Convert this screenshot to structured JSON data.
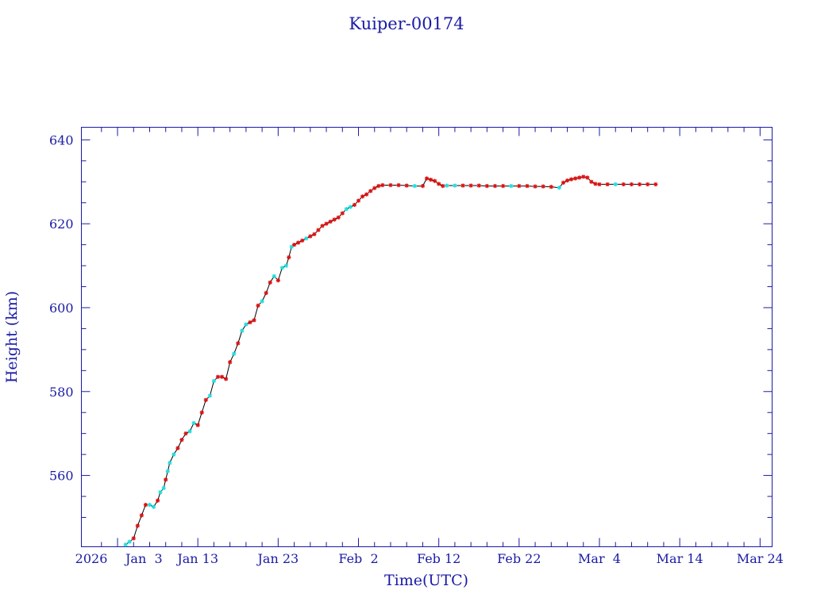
{
  "chart_data": {
    "type": "line",
    "title": "Kuiper-00174",
    "xlabel": "Time(UTC)",
    "ylabel": "Height (km)",
    "x_tick_labels": [
      {
        "date": "2026-01-03",
        "label": "2026"
      },
      {
        "date": "2026-01-13",
        "label": "Jan 13"
      },
      {
        "date": "2026-01-23",
        "label": "Jan 23"
      },
      {
        "date": "2026-02-02",
        "label": "Feb  2"
      },
      {
        "date": "2026-02-12",
        "label": "Feb 12"
      },
      {
        "date": "2026-02-22",
        "label": "Feb 22"
      },
      {
        "date": "2026-03-04",
        "label": "Mar  4"
      },
      {
        "date": "2026-03-14",
        "label": "Mar 14"
      },
      {
        "date": "2026-03-24",
        "label": "Mar 24"
      }
    ],
    "x_first_tick_date_label": "Jan  3",
    "y_ticks": [
      560,
      580,
      600,
      620,
      640
    ],
    "ylim": [
      543,
      643
    ],
    "xlim": [
      "2025-12-29T12:00:00Z",
      "2026-03-25T12:00:00Z"
    ],
    "grid": false,
    "colors": {
      "frame": "#1a1aa6",
      "text": "#1a1aa6",
      "line": "#000000",
      "marker_red": "#dd1111",
      "marker_cyan": "#22dddd"
    },
    "series": [
      {
        "values": [
          {
            "x": "2026-01-04T00:00:00Z",
            "y": 543.5,
            "m": "c"
          },
          {
            "x": "2026-01-04T12:00:00Z",
            "y": 544.2,
            "m": "c"
          },
          {
            "x": "2026-01-05T00:00:00Z",
            "y": 545.0,
            "m": "r"
          },
          {
            "x": "2026-01-05T12:00:00Z",
            "y": 548.0,
            "m": "r"
          },
          {
            "x": "2026-01-06T00:00:00Z",
            "y": 550.5,
            "m": "r"
          },
          {
            "x": "2026-01-06T12:00:00Z",
            "y": 553.0,
            "m": "r"
          },
          {
            "x": "2026-01-07T00:00:00Z",
            "y": 553.0,
            "m": "c"
          },
          {
            "x": "2026-01-07T12:00:00Z",
            "y": 552.5,
            "m": "c"
          },
          {
            "x": "2026-01-08T00:00:00Z",
            "y": 554.0,
            "m": "r"
          },
          {
            "x": "2026-01-08T08:00:00Z",
            "y": 556.0,
            "m": "c"
          },
          {
            "x": "2026-01-08T18:00:00Z",
            "y": 557.0,
            "m": "c"
          },
          {
            "x": "2026-01-09T00:00:00Z",
            "y": 559.0,
            "m": "r"
          },
          {
            "x": "2026-01-09T06:00:00Z",
            "y": 561.0,
            "m": "c"
          },
          {
            "x": "2026-01-09T12:00:00Z",
            "y": 563.0,
            "m": "c"
          },
          {
            "x": "2026-01-10T00:00:00Z",
            "y": 565.0,
            "m": "c"
          },
          {
            "x": "2026-01-10T12:00:00Z",
            "y": 566.5,
            "m": "r"
          },
          {
            "x": "2026-01-11T00:00:00Z",
            "y": 568.5,
            "m": "r"
          },
          {
            "x": "2026-01-11T12:00:00Z",
            "y": 570.0,
            "m": "r"
          },
          {
            "x": "2026-01-12T00:00:00Z",
            "y": 570.5,
            "m": "c"
          },
          {
            "x": "2026-01-12T12:00:00Z",
            "y": 572.5,
            "m": "c"
          },
          {
            "x": "2026-01-13T00:00:00Z",
            "y": 572.0,
            "m": "r"
          },
          {
            "x": "2026-01-13T12:00:00Z",
            "y": 575.0,
            "m": "r"
          },
          {
            "x": "2026-01-14T00:00:00Z",
            "y": 578.0,
            "m": "r"
          },
          {
            "x": "2026-01-14T12:00:00Z",
            "y": 579.0,
            "m": "c"
          },
          {
            "x": "2026-01-15T00:00:00Z",
            "y": 582.5,
            "m": "c"
          },
          {
            "x": "2026-01-15T12:00:00Z",
            "y": 583.5,
            "m": "r"
          },
          {
            "x": "2026-01-16T00:00:00Z",
            "y": 583.5,
            "m": "r"
          },
          {
            "x": "2026-01-16T12:00:00Z",
            "y": 583.0,
            "m": "r"
          },
          {
            "x": "2026-01-17T00:00:00Z",
            "y": 587.0,
            "m": "r"
          },
          {
            "x": "2026-01-17T12:00:00Z",
            "y": 589.0,
            "m": "c"
          },
          {
            "x": "2026-01-18T00:00:00Z",
            "y": 591.5,
            "m": "r"
          },
          {
            "x": "2026-01-18T12:00:00Z",
            "y": 594.5,
            "m": "c"
          },
          {
            "x": "2026-01-19T00:00:00Z",
            "y": 596.0,
            "m": "c"
          },
          {
            "x": "2026-01-19T12:00:00Z",
            "y": 596.5,
            "m": "r"
          },
          {
            "x": "2026-01-20T00:00:00Z",
            "y": 597.0,
            "m": "r"
          },
          {
            "x": "2026-01-20T12:00:00Z",
            "y": 600.5,
            "m": "r"
          },
          {
            "x": "2026-01-21T00:00:00Z",
            "y": 601.5,
            "m": "c"
          },
          {
            "x": "2026-01-21T12:00:00Z",
            "y": 603.5,
            "m": "r"
          },
          {
            "x": "2026-01-22T00:00:00Z",
            "y": 606.0,
            "m": "r"
          },
          {
            "x": "2026-01-22T12:00:00Z",
            "y": 607.5,
            "m": "c"
          },
          {
            "x": "2026-01-23T00:00:00Z",
            "y": 606.5,
            "m": "r"
          },
          {
            "x": "2026-01-23T12:00:00Z",
            "y": 609.5,
            "m": "c"
          },
          {
            "x": "2026-01-24T00:00:00Z",
            "y": 610.0,
            "m": "c"
          },
          {
            "x": "2026-01-24T08:00:00Z",
            "y": 612.0,
            "m": "r"
          },
          {
            "x": "2026-01-24T16:00:00Z",
            "y": 614.5,
            "m": "c"
          },
          {
            "x": "2026-01-25T00:00:00Z",
            "y": 615.0,
            "m": "r"
          },
          {
            "x": "2026-01-25T12:00:00Z",
            "y": 615.5,
            "m": "r"
          },
          {
            "x": "2026-01-26T00:00:00Z",
            "y": 616.0,
            "m": "r"
          },
          {
            "x": "2026-01-26T12:00:00Z",
            "y": 616.5,
            "m": "c"
          },
          {
            "x": "2026-01-27T00:00:00Z",
            "y": 617.0,
            "m": "r"
          },
          {
            "x": "2026-01-27T12:00:00Z",
            "y": 617.5,
            "m": "r"
          },
          {
            "x": "2026-01-28T00:00:00Z",
            "y": 618.5,
            "m": "r"
          },
          {
            "x": "2026-01-28T12:00:00Z",
            "y": 619.5,
            "m": "r"
          },
          {
            "x": "2026-01-29T00:00:00Z",
            "y": 620.0,
            "m": "r"
          },
          {
            "x": "2026-01-29T12:00:00Z",
            "y": 620.5,
            "m": "r"
          },
          {
            "x": "2026-01-30T00:00:00Z",
            "y": 621.0,
            "m": "r"
          },
          {
            "x": "2026-01-30T12:00:00Z",
            "y": 621.5,
            "m": "r"
          },
          {
            "x": "2026-01-31T00:00:00Z",
            "y": 622.5,
            "m": "r"
          },
          {
            "x": "2026-01-31T12:00:00Z",
            "y": 623.5,
            "m": "c"
          },
          {
            "x": "2026-02-01T00:00:00Z",
            "y": 624.0,
            "m": "c"
          },
          {
            "x": "2026-02-01T12:00:00Z",
            "y": 624.5,
            "m": "r"
          },
          {
            "x": "2026-02-02T00:00:00Z",
            "y": 625.5,
            "m": "r"
          },
          {
            "x": "2026-02-02T12:00:00Z",
            "y": 626.5,
            "m": "r"
          },
          {
            "x": "2026-02-03T00:00:00Z",
            "y": 627.0,
            "m": "r"
          },
          {
            "x": "2026-02-03T12:00:00Z",
            "y": 627.8,
            "m": "r"
          },
          {
            "x": "2026-02-04T00:00:00Z",
            "y": 628.5,
            "m": "r"
          },
          {
            "x": "2026-02-04T12:00:00Z",
            "y": 629.0,
            "m": "r"
          },
          {
            "x": "2026-02-05T00:00:00Z",
            "y": 629.2,
            "m": "r"
          },
          {
            "x": "2026-02-06T00:00:00Z",
            "y": 629.2,
            "m": "r"
          },
          {
            "x": "2026-02-07T00:00:00Z",
            "y": 629.2,
            "m": "r"
          },
          {
            "x": "2026-02-08T00:00:00Z",
            "y": 629.1,
            "m": "r"
          },
          {
            "x": "2026-02-09T00:00:00Z",
            "y": 629.0,
            "m": "c"
          },
          {
            "x": "2026-02-10T00:00:00Z",
            "y": 629.0,
            "m": "r"
          },
          {
            "x": "2026-02-10T12:00:00Z",
            "y": 630.8,
            "m": "r"
          },
          {
            "x": "2026-02-11T00:00:00Z",
            "y": 630.5,
            "m": "r"
          },
          {
            "x": "2026-02-11T12:00:00Z",
            "y": 630.2,
            "m": "r"
          },
          {
            "x": "2026-02-12T00:00:00Z",
            "y": 629.5,
            "m": "r"
          },
          {
            "x": "2026-02-12T12:00:00Z",
            "y": 629.0,
            "m": "r"
          },
          {
            "x": "2026-02-13T00:00:00Z",
            "y": 629.1,
            "m": "c"
          },
          {
            "x": "2026-02-14T00:00:00Z",
            "y": 629.1,
            "m": "c"
          },
          {
            "x": "2026-02-15T00:00:00Z",
            "y": 629.1,
            "m": "r"
          },
          {
            "x": "2026-02-16T00:00:00Z",
            "y": 629.1,
            "m": "r"
          },
          {
            "x": "2026-02-17T00:00:00Z",
            "y": 629.1,
            "m": "r"
          },
          {
            "x": "2026-02-18T00:00:00Z",
            "y": 629.0,
            "m": "r"
          },
          {
            "x": "2026-02-19T00:00:00Z",
            "y": 629.0,
            "m": "r"
          },
          {
            "x": "2026-02-20T00:00:00Z",
            "y": 629.0,
            "m": "r"
          },
          {
            "x": "2026-02-21T00:00:00Z",
            "y": 629.0,
            "m": "c"
          },
          {
            "x": "2026-02-22T00:00:00Z",
            "y": 629.0,
            "m": "r"
          },
          {
            "x": "2026-02-23T00:00:00Z",
            "y": 629.0,
            "m": "r"
          },
          {
            "x": "2026-02-24T00:00:00Z",
            "y": 628.9,
            "m": "r"
          },
          {
            "x": "2026-02-25T00:00:00Z",
            "y": 628.9,
            "m": "r"
          },
          {
            "x": "2026-02-26T00:00:00Z",
            "y": 628.8,
            "m": "r"
          },
          {
            "x": "2026-02-27T00:00:00Z",
            "y": 628.6,
            "m": "c"
          },
          {
            "x": "2026-02-27T12:00:00Z",
            "y": 629.8,
            "m": "r"
          },
          {
            "x": "2026-02-28T00:00:00Z",
            "y": 630.3,
            "m": "r"
          },
          {
            "x": "2026-02-28T12:00:00Z",
            "y": 630.6,
            "m": "r"
          },
          {
            "x": "2026-03-01T00:00:00Z",
            "y": 630.8,
            "m": "r"
          },
          {
            "x": "2026-03-01T12:00:00Z",
            "y": 631.0,
            "m": "r"
          },
          {
            "x": "2026-03-02T00:00:00Z",
            "y": 631.2,
            "m": "r"
          },
          {
            "x": "2026-03-02T12:00:00Z",
            "y": 631.0,
            "m": "r"
          },
          {
            "x": "2026-03-03T00:00:00Z",
            "y": 630.0,
            "m": "r"
          },
          {
            "x": "2026-03-03T12:00:00Z",
            "y": 629.5,
            "m": "r"
          },
          {
            "x": "2026-03-04T00:00:00Z",
            "y": 629.4,
            "m": "r"
          },
          {
            "x": "2026-03-05T00:00:00Z",
            "y": 629.4,
            "m": "r"
          },
          {
            "x": "2026-03-06T00:00:00Z",
            "y": 629.4,
            "m": "c"
          },
          {
            "x": "2026-03-07T00:00:00Z",
            "y": 629.4,
            "m": "r"
          },
          {
            "x": "2026-03-08T00:00:00Z",
            "y": 629.4,
            "m": "r"
          },
          {
            "x": "2026-03-09T00:00:00Z",
            "y": 629.4,
            "m": "r"
          },
          {
            "x": "2026-03-10T00:00:00Z",
            "y": 629.4,
            "m": "r"
          },
          {
            "x": "2026-03-11T00:00:00Z",
            "y": 629.4,
            "m": "r"
          }
        ]
      }
    ]
  }
}
